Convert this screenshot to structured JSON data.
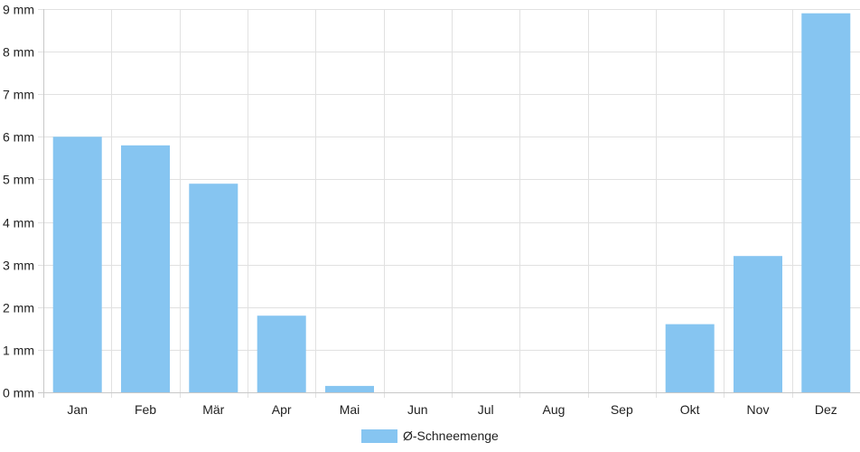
{
  "chart_data": {
    "type": "bar",
    "categories": [
      "Jan",
      "Feb",
      "Mär",
      "Apr",
      "Mai",
      "Jun",
      "Jul",
      "Aug",
      "Sep",
      "Okt",
      "Nov",
      "Dez"
    ],
    "series": [
      {
        "name": "Ø-Schneemenge",
        "values": [
          6.0,
          5.8,
          4.9,
          1.8,
          0.15,
          0,
          0,
          0,
          0,
          1.6,
          3.2,
          8.9
        ],
        "color": "#86c5f1"
      }
    ],
    "ylim": [
      0,
      9
    ],
    "yticks": [
      "0 mm",
      "1 mm",
      "2 mm",
      "3 mm",
      "4 mm",
      "5 mm",
      "6 mm",
      "7 mm",
      "8 mm",
      "9 mm"
    ],
    "grid": true,
    "legend_position": "bottom-center",
    "grid_color": "#e1e1e1",
    "axis_color": "#c8c8c8"
  }
}
